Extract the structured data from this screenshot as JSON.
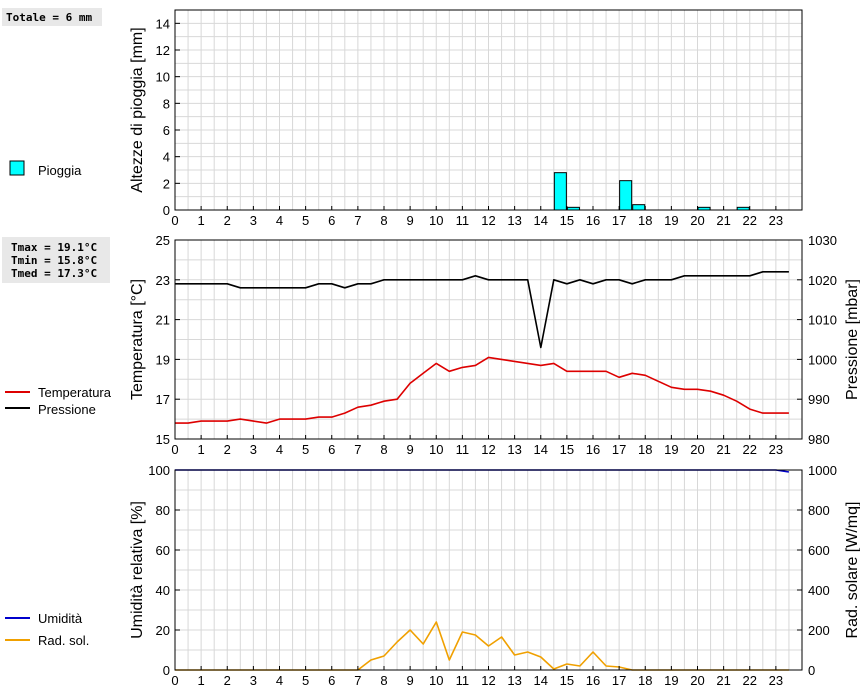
{
  "summary": {
    "rain_total": "Totale = 6 mm",
    "tmax": "Tmax = 19.1°C",
    "tmin": "Tmin = 15.8°C",
    "tmed": "Tmed = 17.3°C"
  },
  "legend": {
    "rain": "Pioggia",
    "temperature": "Temperatura",
    "pressure": "Pressione",
    "humidity": "Umidità",
    "radiation": "Rad. sol."
  },
  "colors": {
    "rain": "#00ffff",
    "temperature": "#dd0000",
    "pressure": "#000000",
    "humidity": "#0000cc",
    "radiation": "#f0a000",
    "grid": "#d8d8d8"
  },
  "chart_data": [
    {
      "type": "bar",
      "ylabel": "Altezze di pioggia [mm]",
      "xlim": [
        0,
        24
      ],
      "ylim": [
        0,
        15
      ],
      "x_ticks": [
        "0",
        "1",
        "2",
        "3",
        "4",
        "5",
        "6",
        "7",
        "8",
        "9",
        "10",
        "11",
        "12",
        "13",
        "14",
        "15",
        "16",
        "17",
        "18",
        "19",
        "20",
        "21",
        "22",
        "23"
      ],
      "y_ticks": [
        "0",
        "2",
        "4",
        "6",
        "8",
        "10",
        "12",
        "14"
      ],
      "series": [
        {
          "name": "Pioggia",
          "bars": [
            {
              "x": 14.5,
              "value": 2.8
            },
            {
              "x": 15.0,
              "value": 0.2
            },
            {
              "x": 17.0,
              "value": 2.2
            },
            {
              "x": 17.5,
              "value": 0.4
            },
            {
              "x": 20.0,
              "value": 0.2
            },
            {
              "x": 21.5,
              "value": 0.2
            }
          ]
        }
      ]
    },
    {
      "type": "line",
      "ylabel": "Temperatura [°C]",
      "y2label": "Pressione [mbar]",
      "xlim": [
        0,
        24
      ],
      "ylim": [
        15,
        25
      ],
      "y2lim": [
        980,
        1030
      ],
      "x_ticks": [
        "0",
        "1",
        "2",
        "3",
        "4",
        "5",
        "6",
        "7",
        "8",
        "9",
        "10",
        "11",
        "12",
        "13",
        "14",
        "15",
        "16",
        "17",
        "18",
        "19",
        "20",
        "21",
        "22",
        "23"
      ],
      "y_ticks": [
        "15",
        "17",
        "19",
        "21",
        "23",
        "25"
      ],
      "y2_ticks": [
        "980",
        "990",
        "1000",
        "1010",
        "1020",
        "1030"
      ],
      "series": [
        {
          "name": "Temperatura",
          "axis": "left",
          "x": [
            0,
            0.5,
            1,
            1.5,
            2,
            2.5,
            3,
            3.5,
            4,
            4.5,
            5,
            5.5,
            6,
            6.5,
            7,
            7.5,
            8,
            8.5,
            9,
            9.5,
            10,
            10.5,
            11,
            11.5,
            12,
            12.5,
            13,
            13.5,
            14,
            14.5,
            15,
            15.5,
            16,
            16.5,
            17,
            17.5,
            18,
            18.5,
            19,
            19.5,
            20,
            20.5,
            21,
            21.5,
            22,
            22.5,
            23,
            23.5
          ],
          "y": [
            15.8,
            15.8,
            15.9,
            15.9,
            15.9,
            16.0,
            15.9,
            15.8,
            16.0,
            16.0,
            16.0,
            16.1,
            16.1,
            16.3,
            16.6,
            16.7,
            16.9,
            17.0,
            17.8,
            18.3,
            18.8,
            18.4,
            18.6,
            18.7,
            19.1,
            19.0,
            18.9,
            18.8,
            18.7,
            18.8,
            18.4,
            18.4,
            18.4,
            18.4,
            18.1,
            18.3,
            18.2,
            17.9,
            17.6,
            17.5,
            17.5,
            17.4,
            17.2,
            16.9,
            16.5,
            16.3,
            16.3,
            16.3
          ]
        },
        {
          "name": "Pressione",
          "axis": "right",
          "x": [
            0,
            0.5,
            1,
            1.5,
            2,
            2.5,
            3,
            3.5,
            4,
            4.5,
            5,
            5.5,
            6,
            6.5,
            7,
            7.5,
            8,
            8.5,
            9,
            9.5,
            10,
            10.5,
            11,
            11.5,
            12,
            12.5,
            13,
            13.5,
            14,
            14.5,
            15,
            15.5,
            16,
            16.5,
            17,
            17.5,
            18,
            18.5,
            19,
            19.5,
            20,
            20.5,
            21,
            21.5,
            22,
            22.5,
            23,
            23.5
          ],
          "y": [
            1019,
            1019,
            1019,
            1019,
            1019,
            1018,
            1018,
            1018,
            1018,
            1018,
            1018,
            1019,
            1019,
            1018,
            1019,
            1019,
            1020,
            1020,
            1020,
            1020,
            1020,
            1020,
            1020,
            1021,
            1020,
            1020,
            1020,
            1020,
            1003,
            1020,
            1019,
            1020,
            1019,
            1020,
            1020,
            1019,
            1020,
            1020,
            1020,
            1021,
            1021,
            1021,
            1021,
            1021,
            1021,
            1022,
            1022,
            1022
          ]
        }
      ]
    },
    {
      "type": "line",
      "ylabel": "Umidità relativa [%]",
      "y2label": "Rad. solare [W/mq]",
      "xlim": [
        0,
        24
      ],
      "ylim": [
        0,
        100
      ],
      "y2lim": [
        0,
        1000
      ],
      "x_ticks": [
        "0",
        "1",
        "2",
        "3",
        "4",
        "5",
        "6",
        "7",
        "8",
        "9",
        "10",
        "11",
        "12",
        "13",
        "14",
        "15",
        "16",
        "17",
        "18",
        "19",
        "20",
        "21",
        "22",
        "23"
      ],
      "y_ticks": [
        "0",
        "20",
        "40",
        "60",
        "80",
        "100"
      ],
      "y2_ticks": [
        "0",
        "200",
        "400",
        "600",
        "800",
        "1000"
      ],
      "series": [
        {
          "name": "Umidità",
          "axis": "left",
          "x": [
            0,
            1,
            2,
            3,
            4,
            5,
            6,
            7,
            8,
            9,
            10,
            11,
            12,
            13,
            14,
            15,
            16,
            17,
            18,
            19,
            20,
            21,
            22,
            23,
            23.5
          ],
          "y": [
            100,
            100,
            100,
            100,
            100,
            100,
            100,
            100,
            100,
            100,
            100,
            100,
            100,
            100,
            100,
            100,
            100,
            100,
            100,
            100,
            100,
            100,
            100,
            100,
            99
          ]
        },
        {
          "name": "Rad. sol.",
          "axis": "right",
          "x": [
            0,
            0.5,
            1,
            1.5,
            2,
            2.5,
            3,
            3.5,
            4,
            4.5,
            5,
            5.5,
            6,
            6.5,
            7,
            7.5,
            8,
            8.5,
            9,
            9.5,
            10,
            10.5,
            11,
            11.5,
            12,
            12.5,
            13,
            13.5,
            14,
            14.5,
            15,
            15.5,
            16,
            16.5,
            17,
            17.5,
            18,
            18.5,
            19,
            19.5,
            20,
            20.5,
            21,
            21.5,
            22,
            22.5,
            23,
            23.5
          ],
          "y": [
            0,
            0,
            0,
            0,
            0,
            0,
            0,
            0,
            0,
            0,
            0,
            0,
            0,
            0,
            0,
            50,
            70,
            140,
            200,
            130,
            240,
            50,
            190,
            175,
            120,
            165,
            75,
            90,
            65,
            5,
            30,
            20,
            90,
            20,
            15,
            0,
            0,
            0,
            0,
            0,
            0,
            0,
            0,
            0,
            0,
            0,
            0,
            0
          ]
        }
      ]
    }
  ]
}
